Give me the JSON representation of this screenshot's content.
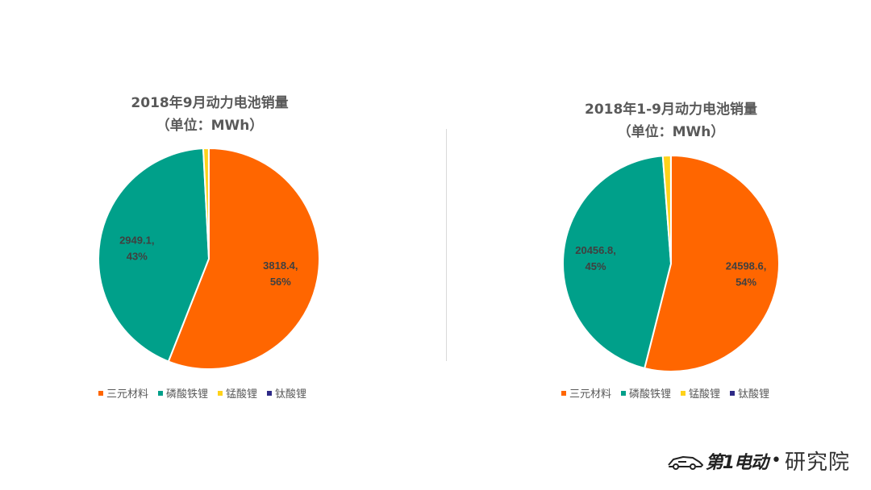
{
  "chart_data": [
    {
      "type": "pie",
      "title": "2018年9月动力电池销量",
      "subtitle": "（单位：MWh）",
      "categories": [
        "三元材料",
        "磷酸铁锂",
        "锰酸锂",
        "钛酸锂"
      ],
      "values": [
        3818.4,
        2949.1,
        55,
        0.5
      ],
      "colors": [
        "#FF6600",
        "#00A08A",
        "#FFD21A",
        "#2E2A87"
      ],
      "data_labels": [
        {
          "value": "3818.4,",
          "percent": "56%"
        },
        {
          "value": "2949.1,",
          "percent": "43%"
        },
        null,
        null
      ],
      "legend_position": "bottom"
    },
    {
      "type": "pie",
      "title": "2018年1-9月动力电池销量",
      "subtitle": "（单位：MWh）",
      "categories": [
        "三元材料",
        "磷酸铁锂",
        "锰酸锂",
        "钛酸锂"
      ],
      "values": [
        24598.6,
        20456.8,
        550,
        5
      ],
      "colors": [
        "#FF6600",
        "#00A08A",
        "#FFD21A",
        "#2E2A87"
      ],
      "data_labels": [
        {
          "value": "24598.6,",
          "percent": "54%"
        },
        {
          "value": "20456.8,",
          "percent": "45%"
        },
        null,
        null
      ],
      "legend_position": "bottom"
    }
  ],
  "legend": {
    "items": [
      "三元材料",
      "磷酸铁锂",
      "锰酸锂",
      "钛酸锂"
    ]
  },
  "logo": {
    "brand": "第1电动",
    "dot": "•",
    "suffix": "研究院"
  }
}
